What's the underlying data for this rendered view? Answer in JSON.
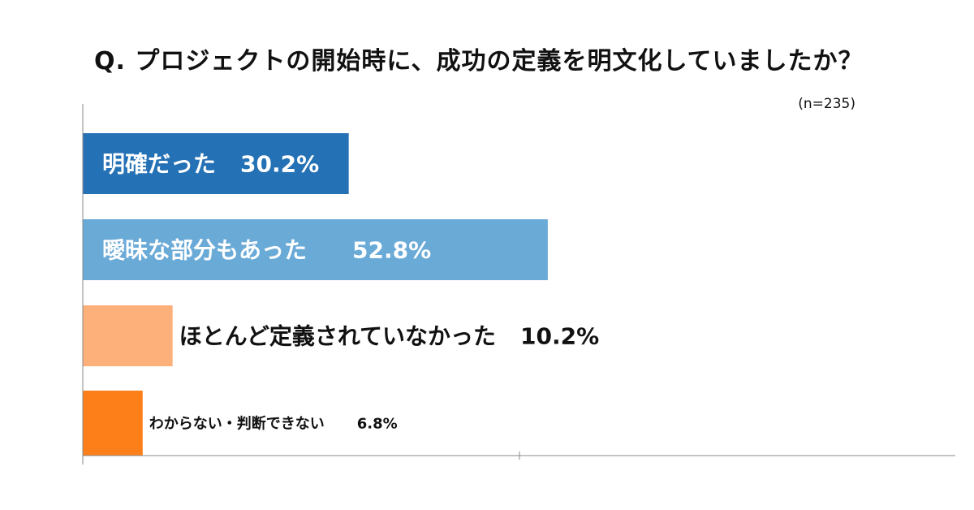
{
  "title": "Q. プロジェクトの開始時に、成功の定義を明文化していましたか？",
  "sample_size": "(n=235)",
  "chart_data": {
    "type": "bar",
    "orientation": "horizontal",
    "title": "Q. プロジェクトの開始時に、成功の定義を明文化していましたか？",
    "categories": [
      "明確だった",
      "曖昧な部分もあった",
      "ほとんど定義されていなかった",
      "わからない・判断できない"
    ],
    "values": [
      30.2,
      52.8,
      10.2,
      6.8
    ],
    "value_labels": [
      "30.2%",
      "52.8%",
      "10.2%",
      "6.8%"
    ],
    "colors": [
      "#2471b5",
      "#6aaad7",
      "#fdb07a",
      "#fd7f1a"
    ],
    "label_colors": [
      "#ffffff",
      "#ffffff",
      "#111111",
      "#111111"
    ],
    "xlim": [
      0,
      100
    ],
    "grid": false,
    "legend": "none"
  }
}
